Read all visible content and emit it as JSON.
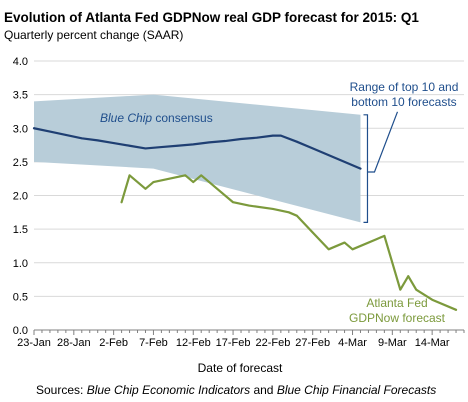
{
  "chart_data": {
    "type": "line",
    "title": "Evolution of Atlanta Fed GDPNow real GDP forecast for 2015: Q1",
    "subtitle": "Quarterly percent change (SAAR)",
    "xlabel": "Date of forecast",
    "ylabel": "",
    "ylim": [
      0,
      4
    ],
    "yticks": [
      "0.0",
      "0.5",
      "1.0",
      "1.5",
      "2.0",
      "2.5",
      "3.0",
      "3.5",
      "4.0"
    ],
    "x_ticks": [
      {
        "label": "23-Jan",
        "day": 0
      },
      {
        "label": "28-Jan",
        "day": 5
      },
      {
        "label": "2-Feb",
        "day": 10
      },
      {
        "label": "7-Feb",
        "day": 15
      },
      {
        "label": "12-Feb",
        "day": 20
      },
      {
        "label": "17-Feb",
        "day": 25
      },
      {
        "label": "22-Feb",
        "day": 30
      },
      {
        "label": "27-Feb",
        "day": 35
      },
      {
        "label": "4-Mar",
        "day": 40
      },
      {
        "label": "9-Mar",
        "day": 45
      },
      {
        "label": "14-Mar",
        "day": 50
      }
    ],
    "x_range_days": [
      0,
      54
    ],
    "grid": true,
    "series": [
      {
        "name": "Blue Chip consensus",
        "role": "line",
        "color": "#1f3f73",
        "x": [
          0,
          2,
          4,
          6,
          8,
          10,
          12,
          14,
          16,
          18,
          20,
          22,
          24,
          26,
          28,
          30,
          31,
          33,
          35,
          37,
          39,
          41
        ],
        "values": [
          3.0,
          2.95,
          2.9,
          2.85,
          2.82,
          2.78,
          2.74,
          2.7,
          2.72,
          2.74,
          2.76,
          2.79,
          2.81,
          2.84,
          2.86,
          2.89,
          2.89,
          2.8,
          2.7,
          2.6,
          2.5,
          2.4
        ]
      },
      {
        "name": "Atlanta Fed GDPNow forecast",
        "role": "line",
        "color": "#7c9a3c",
        "x": [
          11,
          12,
          14,
          15,
          17,
          19,
          20,
          21,
          23,
          25,
          27,
          30,
          32,
          33,
          35,
          37,
          38,
          39,
          40,
          43,
          44,
          46,
          47,
          48,
          50,
          53
        ],
        "values": [
          1.9,
          2.3,
          2.1,
          2.2,
          2.25,
          2.3,
          2.2,
          2.3,
          2.1,
          1.9,
          1.85,
          1.8,
          1.75,
          1.7,
          1.45,
          1.2,
          1.25,
          1.3,
          1.2,
          1.35,
          1.4,
          0.6,
          0.8,
          0.6,
          0.45,
          0.3
        ]
      }
    ],
    "band": {
      "name": "Range of top 10 and bottom 10 forecasts",
      "color": "#b8cdd9",
      "x": [
        0,
        15,
        41
      ],
      "upper": [
        3.4,
        3.5,
        3.2
      ],
      "lower": [
        2.5,
        2.4,
        1.6
      ]
    },
    "annotations": {
      "band_label": [
        "Range of top 10 and",
        "bottom 10 forecasts"
      ],
      "consensus_label": "Blue Chip consensus",
      "consensus_label_parts": [
        "Blue Chip",
        " consensus"
      ],
      "gdpnow_label": [
        "Atlanta Fed",
        "GDPNow forecast"
      ]
    },
    "source": {
      "prefix": "Sources: ",
      "italic1": "Blue Chip Economic Indicators",
      "mid": " and ",
      "italic2": "Blue Chip Financial Forecasts"
    }
  }
}
